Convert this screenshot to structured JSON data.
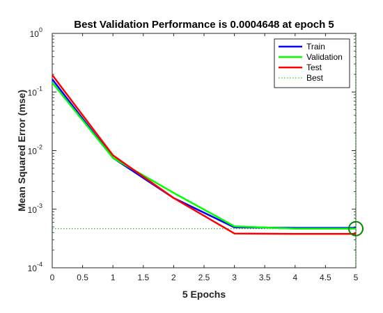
{
  "chart_data": {
    "type": "line",
    "title": "Best Validation Performance is 0.0004648 at epoch 5",
    "xlabel": "5 Epochs",
    "ylabel": "Mean Squared Error  (mse)",
    "xlim": [
      0,
      5
    ],
    "ylim": [
      0.0001,
      1
    ],
    "yscale": "log",
    "x_ticks": [
      0,
      0.5,
      1,
      1.5,
      2,
      2.5,
      3,
      3.5,
      4,
      4.5,
      5
    ],
    "x_tick_labels": [
      "0",
      "0.5",
      "1",
      "1.5",
      "2",
      "2.5",
      "3",
      "3.5",
      "4",
      "4.5",
      "5"
    ],
    "y_ticks": [
      {
        "value": 1,
        "base": "10",
        "exp": "0"
      },
      {
        "value": 0.1,
        "base": "10",
        "exp": "-1"
      },
      {
        "value": 0.01,
        "base": "10",
        "exp": "-2"
      },
      {
        "value": 0.001,
        "base": "10",
        "exp": "-3"
      },
      {
        "value": 0.0001,
        "base": "10",
        "exp": "-4"
      }
    ],
    "x": [
      0,
      1,
      2,
      3,
      4,
      5
    ],
    "series": [
      {
        "name": "Train",
        "color": "#0000ff",
        "values": [
          0.165,
          0.0075,
          0.00155,
          0.00049,
          0.00048,
          0.00048
        ]
      },
      {
        "name": "Validation",
        "color": "#00ff00",
        "values": [
          0.145,
          0.0075,
          0.0019,
          0.00051,
          0.000465,
          0.0004648
        ]
      },
      {
        "name": "Test",
        "color": "#ff0000",
        "values": [
          0.195,
          0.0083,
          0.00155,
          0.000385,
          0.00038,
          0.00038
        ]
      }
    ],
    "best": {
      "name": "Best",
      "color": "#00aa00",
      "epoch": 5,
      "value": 0.0004648
    },
    "legend_position": "top-right",
    "grid": false
  }
}
